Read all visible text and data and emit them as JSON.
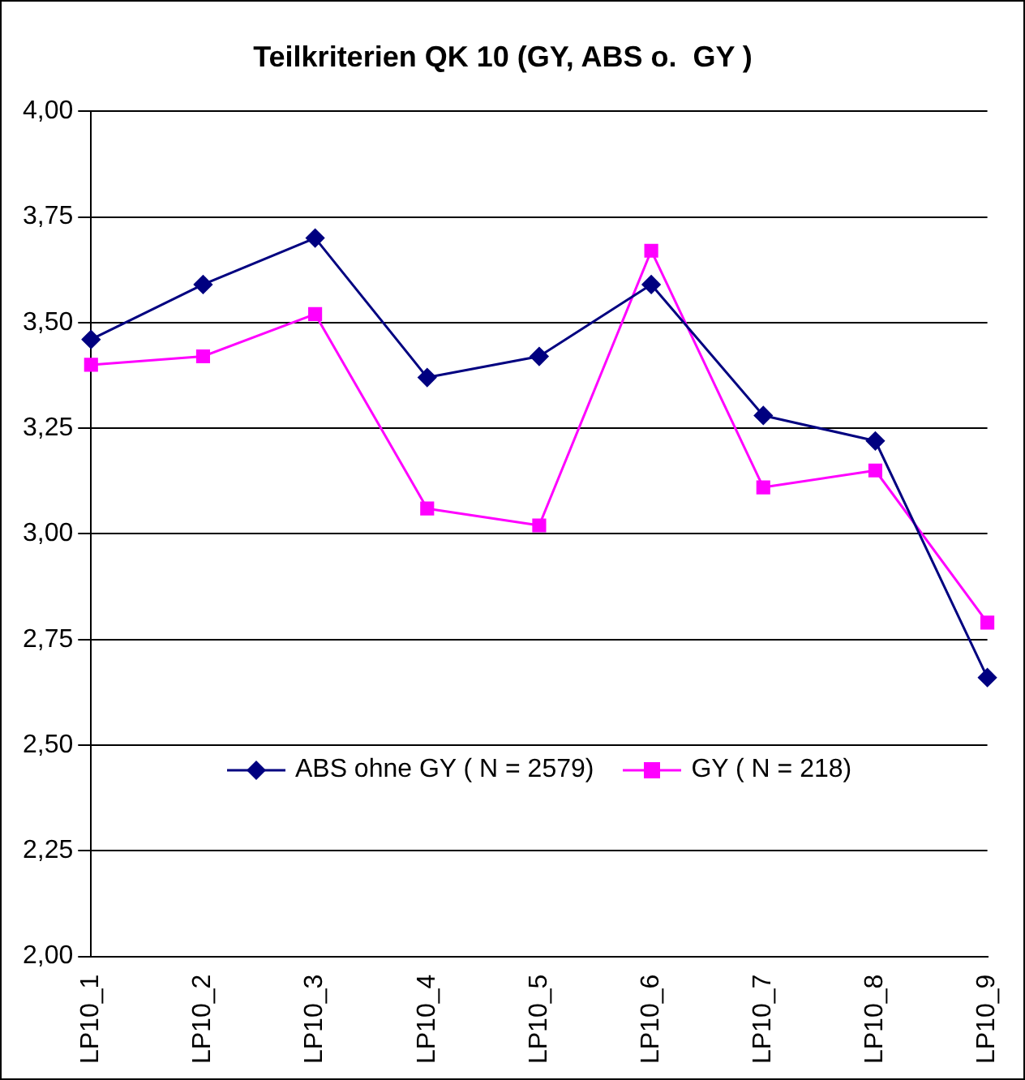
{
  "chart_data": {
    "type": "line",
    "title": "Teilkriterien QK 10 (GY, ABS o.  GY )",
    "categories": [
      "LP10_1",
      "LP10_2",
      "LP10_3",
      "LP10_4",
      "LP10_5",
      "LP10_6",
      "LP10_7",
      "LP10_8",
      "LP10_9"
    ],
    "series": [
      {
        "name": "ABS ohne GY ( N = 2579)",
        "color": "#000080",
        "marker": "diamond",
        "values": [
          3.46,
          3.59,
          3.7,
          3.37,
          3.42,
          3.59,
          3.28,
          3.22,
          2.66
        ]
      },
      {
        "name": "GY ( N = 218)",
        "color": "#ff00ff",
        "marker": "square",
        "values": [
          3.4,
          3.42,
          3.52,
          3.06,
          3.02,
          3.67,
          3.11,
          3.15,
          2.79
        ]
      }
    ],
    "ylim": [
      2,
      4
    ],
    "yticks": [
      {
        "value": 2,
        "label": "2,00"
      },
      {
        "value": 2.25,
        "label": "2,25"
      },
      {
        "value": 2.5,
        "label": "2,50"
      },
      {
        "value": 2.75,
        "label": "2,75"
      },
      {
        "value": 3,
        "label": "3,00"
      },
      {
        "value": 3.25,
        "label": "3,25"
      },
      {
        "value": 3.5,
        "label": "3,50"
      },
      {
        "value": 3.75,
        "label": "3,75"
      },
      {
        "value": 4,
        "label": "4,00"
      }
    ],
    "grid": "y",
    "legend": "bottom",
    "line_style": "solid"
  }
}
